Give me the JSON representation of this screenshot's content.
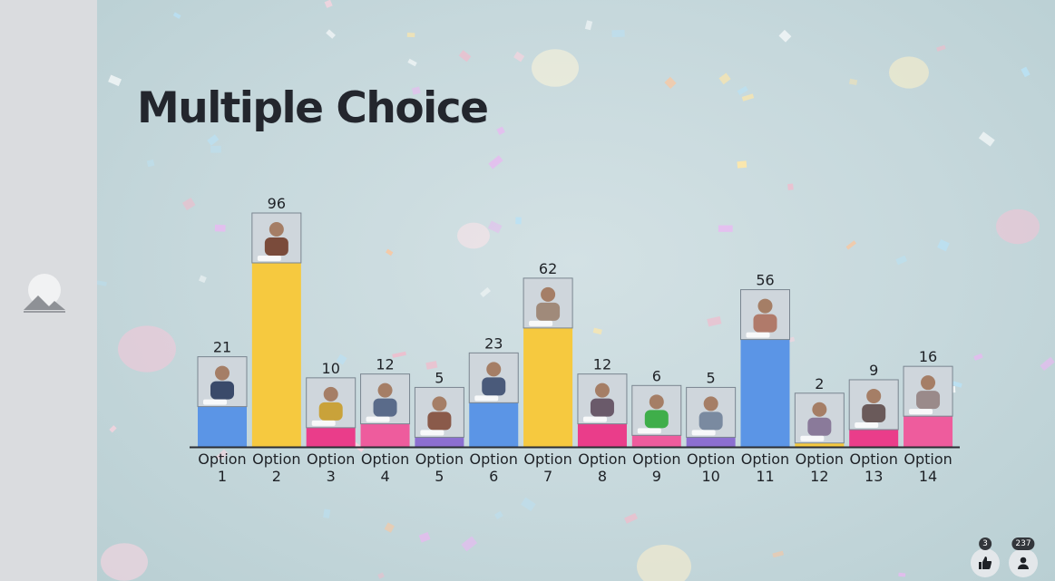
{
  "title": "Multiple Choice",
  "sidebar": {
    "thumbnail_icon": "image-placeholder-icon"
  },
  "reactions": {
    "likes_count": "3",
    "likes_icon": "thumbs-up-icon",
    "participants_count": "237",
    "participants_icon": "person-icon"
  },
  "colors": {
    "blue": "#5b95e6",
    "yellow": "#f6c93f",
    "pink": "#ea3d8a",
    "rose": "#ee5c9d",
    "purple": "#8c6fd0",
    "orange": "#f39a3c"
  },
  "chart_data": {
    "type": "bar",
    "title": "Multiple Choice",
    "categories": [
      "Option 1",
      "Option 2",
      "Option 3",
      "Option 4",
      "Option 5",
      "Option 6",
      "Option 7",
      "Option 8",
      "Option 9",
      "Option 10",
      "Option 11",
      "Option 12",
      "Option 13",
      "Option 14"
    ],
    "values": [
      21,
      96,
      10,
      12,
      5,
      23,
      62,
      12,
      6,
      5,
      56,
      2,
      9,
      16
    ],
    "bar_colors": [
      "#5b95e6",
      "#f6c93f",
      "#ea3d8a",
      "#ee5c9d",
      "#8c6fd0",
      "#5b95e6",
      "#f6c93f",
      "#ea3d8a",
      "#ee5c9d",
      "#8c6fd0",
      "#5b95e6",
      "#f6c93f",
      "#ea3d8a",
      "#ee5c9d"
    ],
    "ylim": [
      0,
      96
    ],
    "grid": false,
    "legend": "none"
  }
}
